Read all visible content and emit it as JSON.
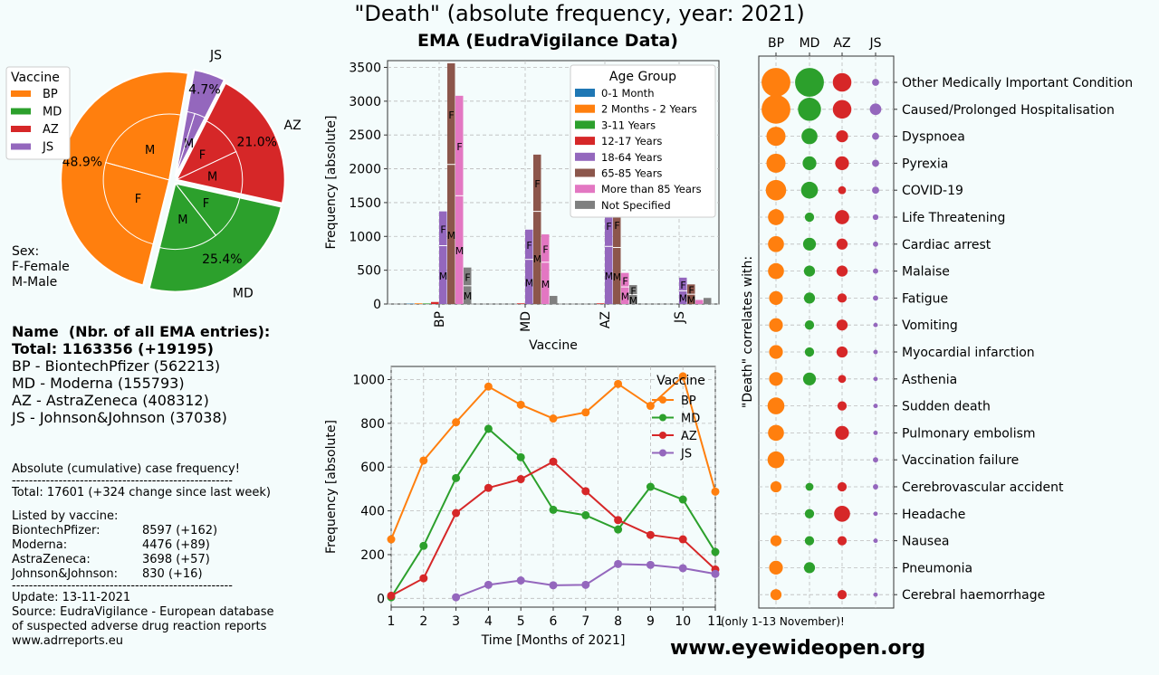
{
  "page": {
    "title": "\"Death\" (absolute frequency, year: 2021)",
    "subtitle": "EMA (EudraVigilance Data)",
    "watermark": "www.eyewideopen.org"
  },
  "colors": {
    "BP": "#ff7f0e",
    "MD": "#2ca02c",
    "AZ": "#d62728",
    "JS": "#9467bd",
    "age": [
      "#1f77b4",
      "#ff7f0e",
      "#2ca02c",
      "#d62728",
      "#9467bd",
      "#8c564b",
      "#e377c2",
      "#7f7f7f"
    ]
  },
  "info": {
    "heading": "Name  (Nbr. of all EMA entries):",
    "total": "Total: 1163356 (+19195)",
    "vaccines": [
      "BP - BiontechPfizer (562213)",
      "MD - Moderna (155793)",
      "AZ - AstraZeneca (408312)",
      "JS - Johnson&Johnson (37038)"
    ],
    "abs_note": "Absolute (cumulative) case frequency!",
    "separator": "----------------------------------------------------",
    "total_cases": "Total: 17601 (+324 change since last week)",
    "listed_by": "Listed by vaccine:",
    "list": [
      {
        "name": "BiontechPfizer:",
        "value": "8597 (+162)"
      },
      {
        "name": "Moderna:",
        "value": "4476 (+89)"
      },
      {
        "name": "AstraZeneca:",
        "value": "3698 (+57)"
      },
      {
        "name": "Johnson&Johnson:",
        "value": "830 (+16)"
      }
    ],
    "update": "Update: 13-11-2021",
    "source1": "Source: EudraVigilance - European database",
    "source2": "of suspected adverse drug reaction reports",
    "source3": "www.adrreports.eu"
  },
  "chart_data": [
    {
      "type": "pie",
      "legend_title": "Vaccine",
      "legend_placement": "upper-left",
      "labels": [
        "BP",
        "MD",
        "AZ",
        "JS"
      ],
      "values": [
        48.9,
        25.4,
        21.0,
        4.7
      ],
      "value_labels": [
        "48.9%",
        "25.4%",
        "21.0%",
        "4.7%"
      ],
      "inner_ring": [
        {
          "vaccine": "BP",
          "labels": [
            "M",
            "F"
          ],
          "values": [
            23.5,
            25.4
          ]
        },
        {
          "vaccine": "MD",
          "labels": [
            "M",
            "F"
          ],
          "values": [
            14.4,
            11.0
          ]
        },
        {
          "vaccine": "AZ",
          "labels": [
            "M",
            "F"
          ],
          "values": [
            10.5,
            10.5
          ]
        },
        {
          "vaccine": "JS",
          "labels": [
            "M",
            "F"
          ],
          "values": [
            2.7,
            2.0
          ]
        }
      ],
      "note": [
        "Sex:",
        "F-Female",
        "M-Male"
      ]
    },
    {
      "type": "bar",
      "ylabel": "Frequency [absolute]",
      "xlabel": "Vaccine",
      "categories": [
        "BP",
        "MD",
        "AZ",
        "JS"
      ],
      "ylim": [
        0,
        3600
      ],
      "yticks": [
        0,
        500,
        1000,
        1500,
        2000,
        2500,
        3000,
        3500
      ],
      "legend_title": "Age Group",
      "legend_placement": "upper-right",
      "series": [
        {
          "name": "0-1 Month",
          "values": [
            5,
            0,
            0,
            0
          ]
        },
        {
          "name": "2 Months - 2 Years",
          "values": [
            10,
            0,
            0,
            0
          ]
        },
        {
          "name": "3-11 Years",
          "values": [
            8,
            0,
            0,
            0
          ]
        },
        {
          "name": "12-17 Years",
          "values": [
            30,
            10,
            10,
            0
          ]
        },
        {
          "name": "18-64 Years",
          "values": [
            1370,
            1100,
            1470,
            390
          ]
        },
        {
          "name": "65-85 Years",
          "values": [
            3560,
            2210,
            1520,
            290
          ]
        },
        {
          "name": "More than 85 Years",
          "values": [
            3080,
            1030,
            460,
            60
          ]
        },
        {
          "name": "Not Specified",
          "values": [
            540,
            120,
            280,
            90
          ]
        }
      ],
      "sex_split_labels": [
        "F",
        "M"
      ],
      "sex_split_fraction": [
        [
          0.5,
          0.5,
          0.5,
          0.5,
          0.63,
          0.58,
          0.52,
          0.5
        ],
        [
          0.5,
          0.5,
          0.5,
          0.5,
          0.6,
          0.62,
          0.6,
          0.5
        ],
        [
          0.5,
          0.5,
          0.5,
          0.5,
          0.58,
          0.55,
          0.55,
          0.5
        ],
        [
          0.5,
          0.5,
          0.5,
          0.5,
          0.5,
          0.5,
          0.5,
          0.5
        ]
      ]
    },
    {
      "type": "line",
      "xlabel": "Time [Months of 2021]",
      "ylabel": "Frequency [absolute]",
      "x": [
        1,
        2,
        3,
        4,
        5,
        6,
        7,
        8,
        9,
        10,
        11
      ],
      "xlim": [
        1,
        11
      ],
      "ylim": [
        -40,
        1060
      ],
      "yticks": [
        0,
        200,
        400,
        600,
        800,
        1000
      ],
      "note": "(only 1-13 November)!",
      "legend_title": "Vaccine",
      "legend_placement": "upper-right",
      "grid": true,
      "series": [
        {
          "name": "BP",
          "values": [
            270,
            630,
            805,
            968,
            885,
            822,
            850,
            980,
            880,
            1015,
            488
          ]
        },
        {
          "name": "MD",
          "values": [
            5,
            240,
            550,
            775,
            645,
            405,
            380,
            315,
            510,
            452,
            212
          ]
        },
        {
          "name": "AZ",
          "values": [
            12,
            92,
            390,
            505,
            545,
            625,
            490,
            358,
            290,
            270,
            132
          ]
        },
        {
          "name": "JS",
          "values": [
            null,
            null,
            5,
            62,
            82,
            60,
            62,
            157,
            153,
            138,
            112
          ]
        }
      ]
    },
    {
      "type": "scatter",
      "ylabel": "\"Death\" correlates with:",
      "columns": [
        "BP",
        "MD",
        "AZ",
        "JS"
      ],
      "rows": [
        "Other Medically Important Condition",
        "Caused/Prolonged Hospitalisation",
        "Dyspnoea",
        "Pyrexia",
        "COVID-19",
        "Life Threatening",
        "Cardiac arrest",
        "Malaise",
        "Fatigue",
        "Vomiting",
        "Myocardial infarction",
        "Asthenia",
        "Sudden death",
        "Pulmonary embolism",
        "Vaccination failure",
        "Cerebrovascular accident",
        "Headache",
        "Nausea",
        "Pneumonia",
        "Cerebral haemorrhage"
      ],
      "size_scale": [
        [
          6.5,
          6.5,
          4.2,
          1.6
        ],
        [
          6.5,
          5.2,
          4.2,
          2.6
        ],
        [
          4.3,
          3.6,
          2.7,
          1.6
        ],
        [
          4.3,
          3.1,
          3.1,
          1.6
        ],
        [
          4.6,
          3.8,
          1.8,
          1.6
        ],
        [
          3.6,
          2.1,
          3.2,
          1.3
        ],
        [
          3.6,
          2.9,
          2.5,
          1.2
        ],
        [
          3.6,
          2.5,
          2.5,
          1.2
        ],
        [
          3.1,
          2.5,
          2.1,
          1.2
        ],
        [
          3.1,
          2.1,
          2.5,
          1.0
        ],
        [
          3.1,
          2.1,
          2.5,
          1.0
        ],
        [
          3.1,
          2.9,
          1.8,
          1.0
        ],
        [
          3.8,
          0,
          2.1,
          1.0
        ],
        [
          3.6,
          0,
          3.1,
          1.0
        ],
        [
          3.8,
          0,
          0,
          1.2
        ],
        [
          2.5,
          1.8,
          2.1,
          1.2
        ],
        [
          0,
          2.1,
          3.6,
          1.0
        ],
        [
          2.5,
          2.1,
          2.1,
          1.0
        ],
        [
          3.1,
          2.5,
          0,
          0
        ],
        [
          2.5,
          0,
          2.1,
          1.0
        ]
      ]
    }
  ]
}
